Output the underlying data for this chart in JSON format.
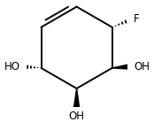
{
  "background_color": "#ffffff",
  "bond_color": "#000000",
  "text_color": "#000000",
  "ring_vertices": [
    [
      0.0,
      1.0
    ],
    [
      0.866,
      0.5
    ],
    [
      0.866,
      -0.5
    ],
    [
      0.0,
      -1.0
    ],
    [
      -0.866,
      -0.5
    ],
    [
      -0.866,
      0.5
    ]
  ],
  "scale": 0.58,
  "xlim": [
    -1.25,
    1.25
  ],
  "ylim": [
    -1.45,
    1.15
  ],
  "figsize": [
    1.74,
    1.38
  ],
  "dpi": 100,
  "lw": 1.4,
  "font_size": 8.5
}
